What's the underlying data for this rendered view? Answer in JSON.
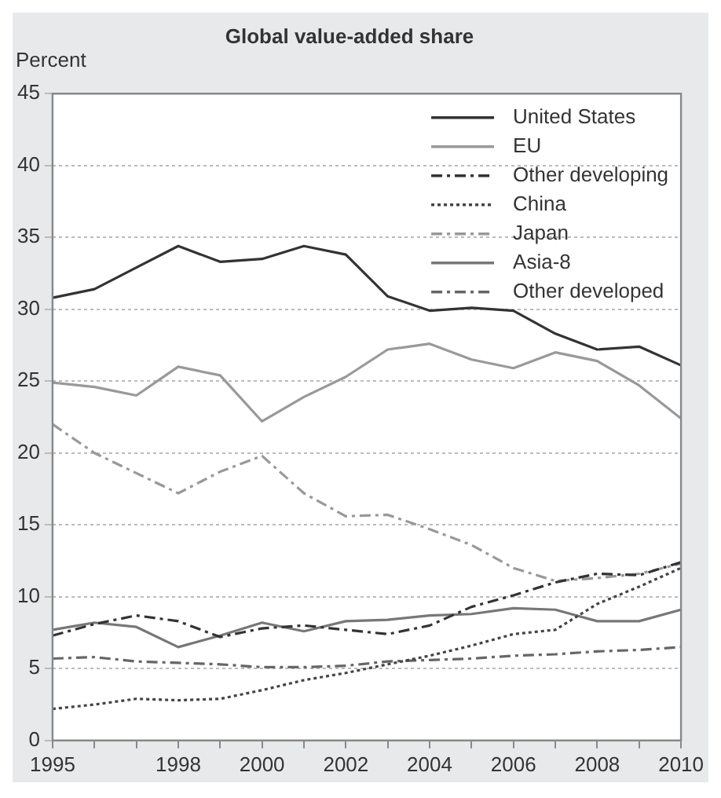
{
  "chart_data": {
    "type": "line",
    "title": "Global value-added share",
    "ylabel": "Percent",
    "x": [
      1995,
      1996,
      1997,
      1998,
      1999,
      2000,
      2001,
      2002,
      2003,
      2004,
      2005,
      2006,
      2007,
      2008,
      2009,
      2010
    ],
    "xlim": [
      1995,
      2010
    ],
    "xticks": [
      1995,
      {
        "value": 1996,
        "label": null
      },
      {
        "value": 1997,
        "label": null
      },
      1998,
      {
        "value": 1999,
        "label": null
      },
      2000,
      {
        "value": 2001,
        "label": null
      },
      2002,
      {
        "value": 2003,
        "label": null
      },
      2004,
      {
        "value": 2005,
        "label": null
      },
      2006,
      {
        "value": 2007,
        "label": null
      },
      2008,
      {
        "value": 2009,
        "label": null
      },
      2010
    ],
    "ylim": [
      0,
      45
    ],
    "yticks": [
      0,
      5,
      10,
      15,
      20,
      25,
      30,
      35,
      40,
      45
    ],
    "grid": "y",
    "legend": "top right",
    "marker": "none",
    "series": [
      {
        "name": "United States",
        "color": "#333333",
        "line_style": "solid",
        "values": [
          30.8,
          31.4,
          32.9,
          34.4,
          33.3,
          33.5,
          34.4,
          33.8,
          30.9,
          29.9,
          30.1,
          29.9,
          28.3,
          27.2,
          27.4,
          26.1
        ]
      },
      {
        "name": "EU",
        "color": "#999999",
        "line_style": "solid",
        "values": [
          24.9,
          24.6,
          24.0,
          26.0,
          25.4,
          22.2,
          23.9,
          25.3,
          27.2,
          27.6,
          26.5,
          25.9,
          27.0,
          26.4,
          24.7,
          22.4
        ]
      },
      {
        "name": "Other developing",
        "color": "#333333",
        "line_style": "dashed",
        "values": [
          7.3,
          8.1,
          8.7,
          8.3,
          7.2,
          7.8,
          8.0,
          7.7,
          7.4,
          8.0,
          9.3,
          10.1,
          11.0,
          11.6,
          11.5,
          12.4
        ]
      },
      {
        "name": "China",
        "color": "#444444",
        "line_style": "dotted",
        "values": [
          2.2,
          2.5,
          2.9,
          2.8,
          2.9,
          3.5,
          4.2,
          4.7,
          5.3,
          5.9,
          6.6,
          7.4,
          7.7,
          9.5,
          10.7,
          12.0
        ]
      },
      {
        "name": "Japan",
        "color": "#999999",
        "line_style": "dashed",
        "values": [
          22.0,
          20.0,
          18.6,
          17.2,
          18.7,
          19.8,
          17.2,
          15.6,
          15.7,
          14.7,
          13.6,
          12.0,
          11.1,
          11.3,
          11.6,
          12.3
        ]
      },
      {
        "name": "Asia-8",
        "color": "#777777",
        "line_style": "solid",
        "values": [
          7.7,
          8.2,
          7.9,
          6.5,
          7.3,
          8.2,
          7.6,
          8.3,
          8.4,
          8.7,
          8.8,
          9.2,
          9.1,
          8.3,
          8.3,
          9.1
        ]
      },
      {
        "name": "Other developed",
        "color": "#666666",
        "line_style": "dashed",
        "values": [
          5.7,
          5.8,
          5.5,
          5.4,
          5.3,
          5.1,
          5.1,
          5.2,
          5.5,
          5.6,
          5.7,
          5.9,
          6.0,
          6.2,
          6.3,
          6.5
        ]
      }
    ]
  }
}
